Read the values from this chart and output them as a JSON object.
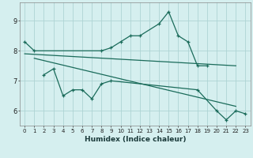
{
  "xlabel": "Humidex (Indice chaleur)",
  "color": "#1a6b5a",
  "bg_color": "#d5efef",
  "grid_color": "#aed4d4",
  "ylim": [
    5.5,
    9.6
  ],
  "xlim": [
    -0.5,
    23.5
  ],
  "yticks": [
    6,
    7,
    8,
    9
  ],
  "xticks": [
    0,
    1,
    2,
    3,
    4,
    5,
    6,
    7,
    8,
    9,
    10,
    11,
    12,
    13,
    14,
    15,
    16,
    17,
    18,
    19,
    20,
    21,
    22,
    23
  ],
  "line1_x": [
    0,
    1,
    8,
    9,
    10,
    11,
    12,
    14,
    15,
    16,
    17,
    18,
    19
  ],
  "line1_y": [
    8.3,
    8.0,
    8.0,
    8.1,
    8.3,
    8.5,
    8.5,
    8.9,
    9.3,
    8.5,
    8.3,
    7.5,
    7.5
  ],
  "line2_x": [
    0,
    22
  ],
  "line2_y": [
    7.9,
    7.5
  ],
  "line3_x": [
    1,
    22
  ],
  "line3_y": [
    7.75,
    6.15
  ],
  "line4_x": [
    2,
    3,
    4,
    5,
    6,
    7,
    8,
    9,
    18,
    20,
    21,
    22,
    23
  ],
  "line4_y": [
    7.2,
    7.4,
    6.5,
    6.7,
    6.7,
    6.4,
    6.9,
    7.0,
    6.7,
    6.0,
    5.7,
    6.0,
    5.9
  ],
  "xlabel_fontsize": 6.5,
  "tick_fontsize": 5.0
}
